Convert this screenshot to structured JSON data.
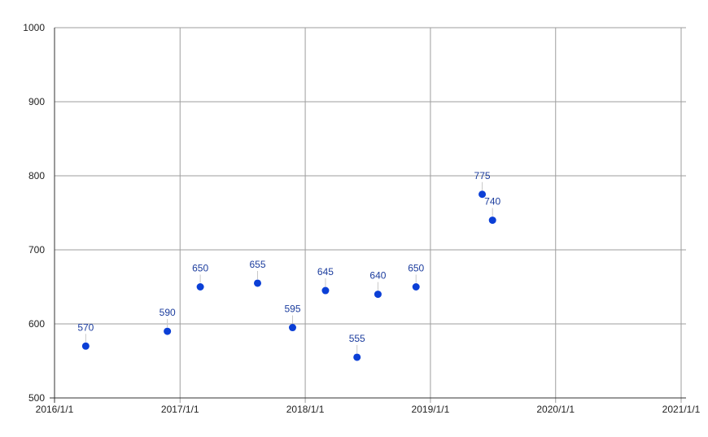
{
  "chart_data": {
    "type": "scatter",
    "title": "",
    "xlabel": "",
    "ylabel": "",
    "xlim": [
      "2016-01-01",
      "2021-01-01"
    ],
    "ylim": [
      500,
      1000
    ],
    "x_ticks": [
      "2016/1/1",
      "2017/1/1",
      "2018/1/1",
      "2019/1/1",
      "2020/1/1",
      "2021/1/1"
    ],
    "y_ticks": [
      1000,
      900,
      800,
      700,
      600,
      500
    ],
    "grid": true,
    "legend": "none",
    "series": [
      {
        "color": "#0b3fd6",
        "points": [
          {
            "x": "2016-04-01",
            "y": 570,
            "label": "570"
          },
          {
            "x": "2016-11-25",
            "y": 590,
            "label": "590"
          },
          {
            "x": "2017-03-01",
            "y": 650,
            "label": "650"
          },
          {
            "x": "2017-08-15",
            "y": 655,
            "label": "655"
          },
          {
            "x": "2017-11-25",
            "y": 595,
            "label": "595"
          },
          {
            "x": "2018-03-01",
            "y": 645,
            "label": "645"
          },
          {
            "x": "2018-06-01",
            "y": 555,
            "label": "555"
          },
          {
            "x": "2018-08-01",
            "y": 640,
            "label": "640"
          },
          {
            "x": "2018-11-20",
            "y": 650,
            "label": "650"
          },
          {
            "x": "2019-06-01",
            "y": 775,
            "label": "775"
          },
          {
            "x": "2019-07-01",
            "y": 740,
            "label": "740"
          }
        ]
      }
    ]
  }
}
